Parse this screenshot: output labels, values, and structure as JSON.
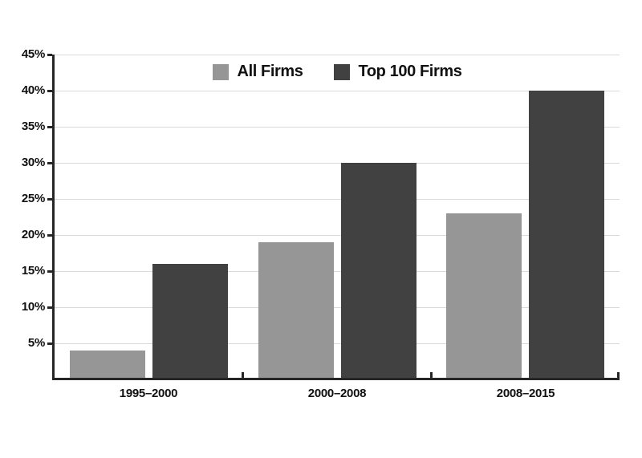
{
  "chart_data": {
    "type": "bar",
    "title": "",
    "xlabel": "",
    "ylabel": "",
    "categories": [
      "1995–2000",
      "2000–2008",
      "2008–2015"
    ],
    "series": [
      {
        "name": "All Firms",
        "color": "#969696",
        "values": [
          4,
          19,
          23
        ]
      },
      {
        "name": "Top 100 Firms",
        "color": "#414141",
        "values": [
          16,
          30,
          40
        ]
      }
    ],
    "ylim": [
      0,
      45
    ],
    "ytick_step": 5,
    "ytick_labels": [
      "5%",
      "10%",
      "15%",
      "20%",
      "25%",
      "30%",
      "35%",
      "40%",
      "45%"
    ],
    "grid": true,
    "legend_position": "top-center",
    "colors": {
      "axis": "#262626",
      "gridline": "#d9d9d9",
      "text": "#111111",
      "background": "#ffffff"
    }
  }
}
